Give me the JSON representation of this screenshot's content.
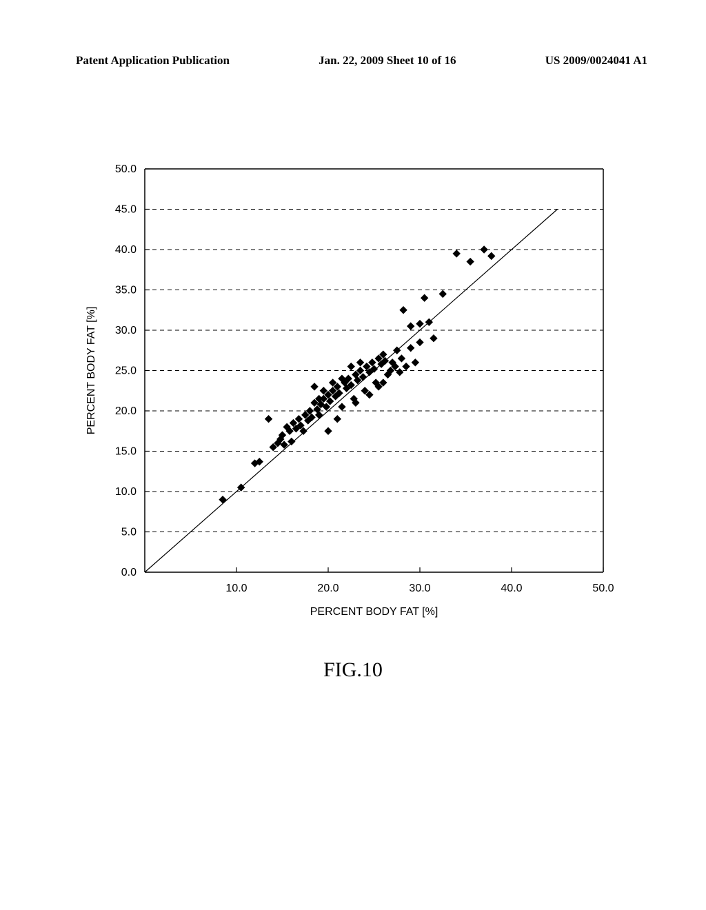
{
  "header": {
    "left": "Patent Application Publication",
    "center": "Jan. 22, 2009  Sheet 10 of 16",
    "right": "US 2009/0024041 A1"
  },
  "figure_label": "FIG.10",
  "chart": {
    "type": "scatter",
    "xlabel": "PERCENT BODY FAT [%]",
    "ylabel": "PERCENT BODY FAT [%]",
    "xlim": [
      0,
      50
    ],
    "ylim": [
      0,
      50
    ],
    "xticks": [
      10.0,
      20.0,
      30.0,
      40.0,
      50.0
    ],
    "yticks": [
      0.0,
      5.0,
      10.0,
      15.0,
      20.0,
      25.0,
      30.0,
      35.0,
      40.0,
      45.0,
      50.0
    ],
    "xtick_labels": [
      "10.0",
      "20.0",
      "30.0",
      "40.0",
      "50.0"
    ],
    "ytick_labels": [
      "0.0",
      "5.0",
      "10.0",
      "15.0",
      "20.0",
      "25.0",
      "30.0",
      "35.0",
      "40.0",
      "45.0",
      "50.0"
    ],
    "background_color": "#ffffff",
    "axis_color": "#000000",
    "grid_color": "#000000",
    "grid_dash": "6,5",
    "marker_color": "#000000",
    "marker_size": 8,
    "line_color": "#000000",
    "line_width": 1.2,
    "label_fontsize": 16,
    "tick_fontsize": 16,
    "reference_line": [
      [
        0,
        0
      ],
      [
        45,
        45
      ]
    ],
    "points": [
      [
        8.5,
        9.0
      ],
      [
        10.5,
        10.5
      ],
      [
        12.0,
        13.5
      ],
      [
        12.5,
        13.7
      ],
      [
        14.0,
        15.5
      ],
      [
        14.5,
        16.0
      ],
      [
        14.8,
        16.5
      ],
      [
        15.0,
        17.0
      ],
      [
        15.2,
        15.8
      ],
      [
        15.5,
        18.0
      ],
      [
        15.8,
        17.5
      ],
      [
        16.0,
        16.2
      ],
      [
        16.2,
        18.5
      ],
      [
        16.5,
        17.8
      ],
      [
        16.8,
        19.0
      ],
      [
        17.0,
        18.2
      ],
      [
        17.3,
        17.5
      ],
      [
        17.5,
        19.5
      ],
      [
        17.8,
        18.8
      ],
      [
        18.0,
        20.0
      ],
      [
        18.2,
        19.2
      ],
      [
        18.5,
        21.0
      ],
      [
        18.8,
        20.2
      ],
      [
        19.0,
        19.5
      ],
      [
        19.2,
        20.8
      ],
      [
        19.5,
        21.5
      ],
      [
        19.8,
        20.5
      ],
      [
        20.0,
        22.0
      ],
      [
        20.2,
        21.2
      ],
      [
        20.5,
        22.5
      ],
      [
        20.8,
        21.8
      ],
      [
        21.0,
        23.0
      ],
      [
        21.2,
        22.2
      ],
      [
        21.5,
        20.5
      ],
      [
        21.8,
        23.5
      ],
      [
        22.0,
        22.8
      ],
      [
        22.2,
        24.0
      ],
      [
        22.5,
        23.2
      ],
      [
        22.8,
        21.5
      ],
      [
        23.0,
        24.5
      ],
      [
        23.2,
        23.8
      ],
      [
        23.5,
        25.0
      ],
      [
        23.8,
        24.2
      ],
      [
        24.0,
        22.5
      ],
      [
        24.2,
        25.5
      ],
      [
        24.5,
        24.8
      ],
      [
        24.8,
        26.0
      ],
      [
        25.0,
        25.2
      ],
      [
        25.2,
        23.5
      ],
      [
        25.5,
        26.5
      ],
      [
        25.8,
        25.8
      ],
      [
        26.0,
        27.0
      ],
      [
        26.2,
        26.2
      ],
      [
        26.5,
        24.5
      ],
      [
        26.8,
        25.0
      ],
      [
        27.0,
        26.0
      ],
      [
        27.3,
        25.5
      ],
      [
        27.5,
        27.5
      ],
      [
        27.8,
        24.8
      ],
      [
        28.0,
        26.5
      ],
      [
        28.5,
        25.5
      ],
      [
        29.0,
        27.8
      ],
      [
        29.5,
        26.0
      ],
      [
        30.0,
        28.5
      ],
      [
        28.2,
        32.5
      ],
      [
        29.0,
        30.5
      ],
      [
        30.0,
        30.8
      ],
      [
        30.5,
        34.0
      ],
      [
        31.0,
        31.0
      ],
      [
        31.5,
        29.0
      ],
      [
        32.5,
        34.5
      ],
      [
        34.0,
        39.5
      ],
      [
        35.5,
        38.5
      ],
      [
        37.0,
        40.0
      ],
      [
        37.8,
        39.2
      ],
      [
        13.5,
        19.0
      ],
      [
        20.0,
        17.5
      ],
      [
        21.0,
        19.0
      ],
      [
        23.0,
        21.0
      ],
      [
        24.5,
        22.0
      ],
      [
        25.5,
        23.0
      ],
      [
        26.0,
        23.5
      ],
      [
        19.5,
        22.5
      ],
      [
        18.5,
        23.0
      ],
      [
        22.5,
        25.5
      ],
      [
        23.5,
        26.0
      ],
      [
        21.5,
        24.0
      ],
      [
        20.5,
        23.5
      ],
      [
        19.0,
        21.5
      ]
    ]
  }
}
